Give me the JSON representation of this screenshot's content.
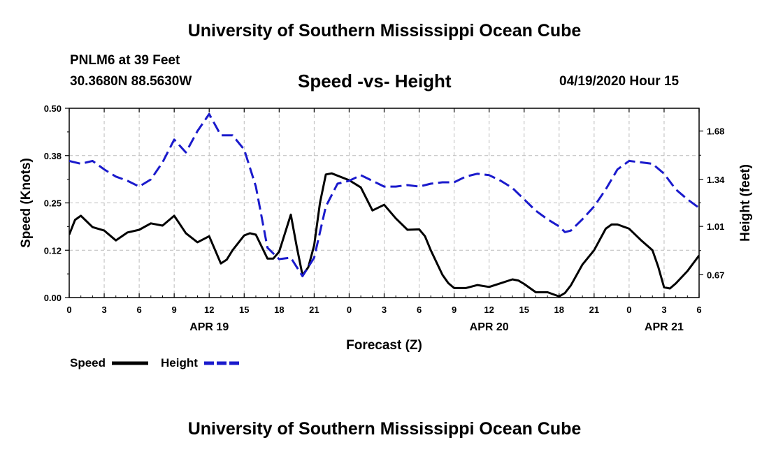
{
  "header": {
    "title": "University of Southern Mississippi Ocean Cube",
    "station": "PNLM6 at 39 Feet",
    "coordinates": "30.3680N 88.5630W",
    "chart_title": "Speed -vs- Height",
    "timestamp": "04/19/2020 Hour 15"
  },
  "footer": {
    "title": "University of Southern Mississippi Ocean Cube"
  },
  "colors": {
    "speed": "#000000",
    "height": "#1a1acc",
    "grid": "#bbbbbb"
  },
  "chart_data": {
    "type": "line",
    "title": "Speed -vs- Height",
    "xlabel": "Forecast (Z)",
    "ylabel_left": "Speed (Knots)",
    "ylabel_right": "Height (feet)",
    "x_range": [
      0,
      54
    ],
    "x_ticks": [
      0,
      3,
      6,
      9,
      12,
      15,
      18,
      21,
      24,
      27,
      30,
      33,
      36,
      39,
      42,
      45,
      48,
      51,
      54
    ],
    "x_tick_labels": [
      "0",
      "3",
      "6",
      "9",
      "12",
      "15",
      "18",
      "21",
      "0",
      "3",
      "6",
      "9",
      "12",
      "15",
      "18",
      "21",
      "0",
      "3",
      "6"
    ],
    "date_labels": [
      {
        "x": 12,
        "label": "APR 19"
      },
      {
        "x": 36,
        "label": "APR 20"
      },
      {
        "x": 51,
        "label": "APR 21"
      }
    ],
    "ylim_left": [
      0,
      0.5
    ],
    "y_ticks_left": [
      0,
      0.125,
      0.25,
      0.375,
      0.5
    ],
    "y_tick_labels_left": [
      "0.00",
      "0.12",
      "0.25",
      "0.38",
      "0.50"
    ],
    "ylim_right": [
      0.51,
      1.84
    ],
    "y_ticks_right": [
      0.67,
      1.01,
      1.34,
      1.68
    ],
    "y_tick_labels_right": [
      "0.67",
      "1.01",
      "1.34",
      "1.68"
    ],
    "grid": true,
    "series": [
      {
        "name": "Speed",
        "axis": "left",
        "style": "solid",
        "points": [
          [
            0,
            0.166
          ],
          [
            0.5,
            0.205
          ],
          [
            1,
            0.216
          ],
          [
            2,
            0.186
          ],
          [
            3,
            0.177
          ],
          [
            4,
            0.151
          ],
          [
            5,
            0.172
          ],
          [
            6,
            0.179
          ],
          [
            7,
            0.196
          ],
          [
            8,
            0.19
          ],
          [
            9,
            0.216
          ],
          [
            10,
            0.17
          ],
          [
            11,
            0.146
          ],
          [
            12,
            0.162
          ],
          [
            13,
            0.09
          ],
          [
            13.5,
            0.1
          ],
          [
            14,
            0.125
          ],
          [
            15,
            0.164
          ],
          [
            15.5,
            0.17
          ],
          [
            16,
            0.166
          ],
          [
            17,
            0.103
          ],
          [
            17.5,
            0.103
          ],
          [
            18,
            0.121
          ],
          [
            19,
            0.219
          ],
          [
            19.5,
            0.135
          ],
          [
            20,
            0.059
          ],
          [
            20.5,
            0.08
          ],
          [
            21,
            0.138
          ],
          [
            21.5,
            0.25
          ],
          [
            22,
            0.325
          ],
          [
            22.5,
            0.328
          ],
          [
            24,
            0.31
          ],
          [
            25,
            0.291
          ],
          [
            26,
            0.23
          ],
          [
            27,
            0.245
          ],
          [
            28,
            0.209
          ],
          [
            29,
            0.179
          ],
          [
            30,
            0.18
          ],
          [
            30.5,
            0.162
          ],
          [
            31,
            0.125
          ],
          [
            32,
            0.06
          ],
          [
            32.5,
            0.038
          ],
          [
            33,
            0.025
          ],
          [
            34,
            0.025
          ],
          [
            35,
            0.033
          ],
          [
            36,
            0.028
          ],
          [
            37,
            0.038
          ],
          [
            38,
            0.048
          ],
          [
            38.5,
            0.045
          ],
          [
            39,
            0.036
          ],
          [
            40,
            0.014
          ],
          [
            41,
            0.014
          ],
          [
            42,
            0.003
          ],
          [
            42.5,
            0.012
          ],
          [
            43,
            0.032
          ],
          [
            44,
            0.087
          ],
          [
            45,
            0.125
          ],
          [
            46,
            0.182
          ],
          [
            46.5,
            0.193
          ],
          [
            47,
            0.193
          ],
          [
            48,
            0.182
          ],
          [
            49,
            0.152
          ],
          [
            50,
            0.125
          ],
          [
            50.5,
            0.081
          ],
          [
            51,
            0.027
          ],
          [
            51.5,
            0.024
          ],
          [
            52,
            0.037
          ],
          [
            53,
            0.07
          ],
          [
            54,
            0.111
          ]
        ]
      },
      {
        "name": "Height",
        "axis": "right",
        "style": "dashed",
        "points": [
          [
            0,
            1.47
          ],
          [
            1,
            1.45
          ],
          [
            2,
            1.47
          ],
          [
            3,
            1.41
          ],
          [
            4,
            1.36
          ],
          [
            5,
            1.33
          ],
          [
            6,
            1.29
          ],
          [
            7,
            1.34
          ],
          [
            8,
            1.46
          ],
          [
            9,
            1.62
          ],
          [
            10,
            1.53
          ],
          [
            11,
            1.68
          ],
          [
            12,
            1.8
          ],
          [
            13,
            1.65
          ],
          [
            14,
            1.65
          ],
          [
            15,
            1.55
          ],
          [
            16,
            1.29
          ],
          [
            17,
            0.86
          ],
          [
            18,
            0.78
          ],
          [
            19,
            0.79
          ],
          [
            20,
            0.66
          ],
          [
            21,
            0.79
          ],
          [
            22,
            1.15
          ],
          [
            23,
            1.31
          ],
          [
            24,
            1.33
          ],
          [
            25,
            1.37
          ],
          [
            26,
            1.33
          ],
          [
            27,
            1.29
          ],
          [
            28,
            1.29
          ],
          [
            29,
            1.3
          ],
          [
            30,
            1.29
          ],
          [
            31,
            1.31
          ],
          [
            32,
            1.32
          ],
          [
            33,
            1.32
          ],
          [
            34,
            1.36
          ],
          [
            35,
            1.38
          ],
          [
            36,
            1.37
          ],
          [
            37,
            1.33
          ],
          [
            38,
            1.28
          ],
          [
            39,
            1.2
          ],
          [
            40,
            1.12
          ],
          [
            41,
            1.06
          ],
          [
            42,
            1.01
          ],
          [
            42.5,
            0.97
          ],
          [
            43,
            0.98
          ],
          [
            44,
            1.06
          ],
          [
            45,
            1.15
          ],
          [
            46,
            1.27
          ],
          [
            47,
            1.41
          ],
          [
            48,
            1.47
          ],
          [
            49,
            1.46
          ],
          [
            50,
            1.45
          ],
          [
            51,
            1.38
          ],
          [
            52,
            1.27
          ],
          [
            53,
            1.2
          ],
          [
            54,
            1.14
          ]
        ]
      }
    ],
    "legend": [
      {
        "label": "Speed",
        "style": "solid"
      },
      {
        "label": "Height",
        "style": "dashed"
      }
    ]
  }
}
